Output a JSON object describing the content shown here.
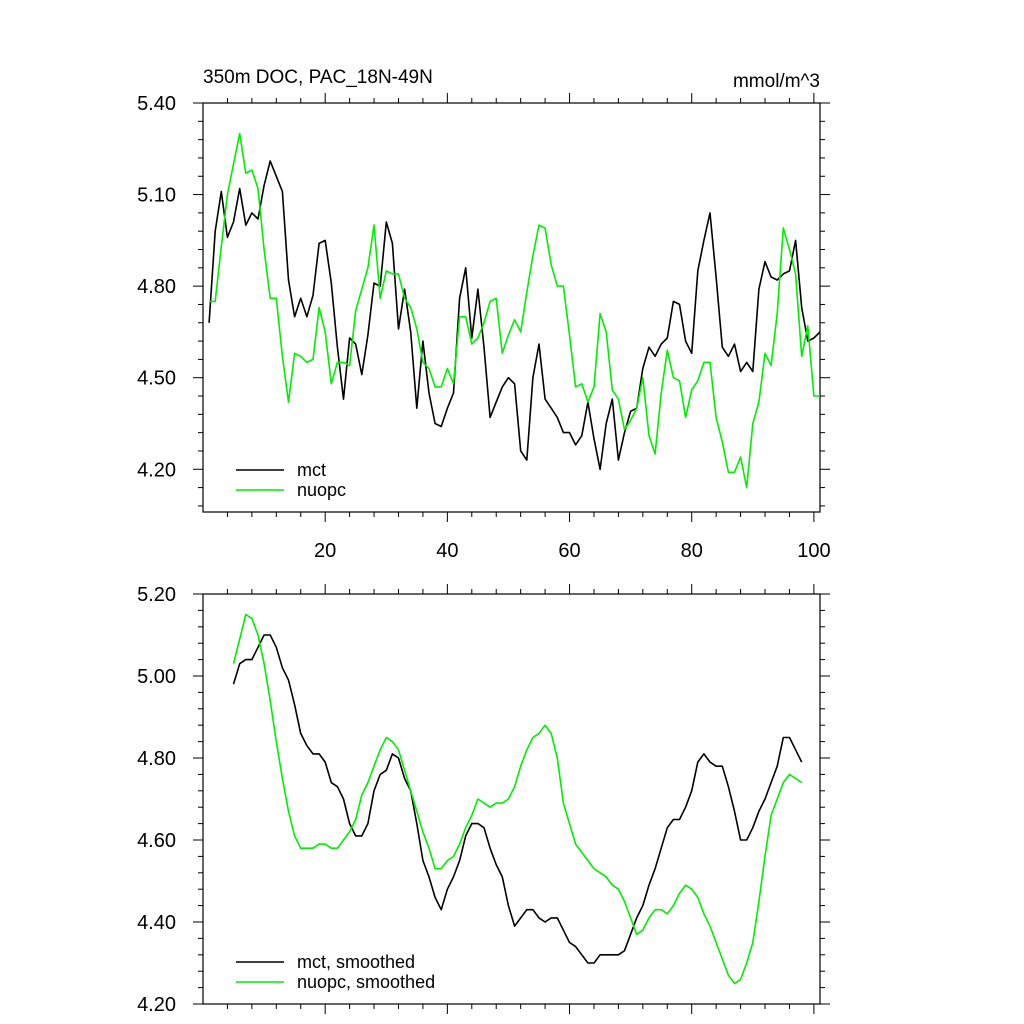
{
  "chart_data": [
    {
      "type": "line",
      "title": "350m DOC, PAC_18N-49N",
      "units": "mmol/m^3",
      "xlim": [
        0,
        101
      ],
      "ylim": [
        4.06,
        5.4
      ],
      "xticks": [
        20,
        40,
        60,
        80,
        100
      ],
      "xtick_labels": [
        "20",
        "40",
        "60",
        "80",
        "100"
      ],
      "yticks": [
        4.2,
        4.5,
        4.8,
        5.1,
        5.4
      ],
      "ytick_labels": [
        "4.20",
        "4.50",
        "4.80",
        "5.10",
        "5.40"
      ],
      "x": [
        1,
        2,
        3,
        4,
        5,
        6,
        7,
        8,
        9,
        10,
        11,
        12,
        13,
        14,
        15,
        16,
        17,
        18,
        19,
        20,
        21,
        22,
        23,
        24,
        25,
        26,
        27,
        28,
        29,
        30,
        31,
        32,
        33,
        34,
        35,
        36,
        37,
        38,
        39,
        40,
        41,
        42,
        43,
        44,
        45,
        46,
        47,
        48,
        49,
        50,
        51,
        52,
        53,
        54,
        55,
        56,
        57,
        58,
        59,
        60,
        61,
        62,
        63,
        64,
        65,
        66,
        67,
        68,
        69,
        70,
        71,
        72,
        73,
        74,
        75,
        76,
        77,
        78,
        79,
        80,
        81,
        82,
        83,
        84,
        85,
        86,
        87,
        88,
        89,
        90,
        91,
        92,
        93,
        94,
        95,
        96,
        97,
        98,
        99,
        100,
        101
      ],
      "series": [
        {
          "name": "mct",
          "color": "#000000",
          "values": [
            4.68,
            4.98,
            5.11,
            4.96,
            5.01,
            5.12,
            5.0,
            5.04,
            5.02,
            5.13,
            5.21,
            5.16,
            5.11,
            4.82,
            4.7,
            4.76,
            4.7,
            4.77,
            4.94,
            4.95,
            4.81,
            4.6,
            4.43,
            4.63,
            4.61,
            4.51,
            4.64,
            4.81,
            4.8,
            5.01,
            4.94,
            4.66,
            4.79,
            4.65,
            4.4,
            4.62,
            4.45,
            4.35,
            4.34,
            4.4,
            4.45,
            4.76,
            4.86,
            4.63,
            4.79,
            4.6,
            4.37,
            4.42,
            4.47,
            4.5,
            4.48,
            4.26,
            4.23,
            4.5,
            4.61,
            4.43,
            4.4,
            4.37,
            4.32,
            4.32,
            4.28,
            4.31,
            4.42,
            4.3,
            4.2,
            4.35,
            4.43,
            4.23,
            4.32,
            4.39,
            4.4,
            4.53,
            4.6,
            4.57,
            4.61,
            4.63,
            4.75,
            4.74,
            4.62,
            4.58,
            4.85,
            4.95,
            5.04,
            4.83,
            4.6,
            4.57,
            4.61,
            4.52,
            4.55,
            4.52,
            4.79,
            4.88,
            4.83,
            4.82,
            4.84,
            4.85,
            4.95,
            4.73,
            4.62,
            4.63,
            4.65
          ]
        },
        {
          "name": "nuopc",
          "color": "#00ee00",
          "values": [
            4.75,
            4.75,
            4.93,
            5.1,
            5.2,
            5.3,
            5.17,
            5.18,
            5.12,
            4.92,
            4.76,
            4.76,
            4.57,
            4.42,
            4.58,
            4.57,
            4.55,
            4.56,
            4.73,
            4.65,
            4.48,
            4.55,
            4.55,
            4.54,
            4.72,
            4.79,
            4.86,
            5.0,
            4.76,
            4.85,
            4.84,
            4.84,
            4.76,
            4.73,
            4.66,
            4.55,
            4.53,
            4.47,
            4.47,
            4.53,
            4.48,
            4.7,
            4.7,
            4.61,
            4.63,
            4.68,
            4.75,
            4.76,
            4.58,
            4.64,
            4.69,
            4.65,
            4.78,
            4.9,
            5.0,
            4.99,
            4.87,
            4.8,
            4.8,
            4.64,
            4.47,
            4.48,
            4.42,
            4.47,
            4.71,
            4.65,
            4.46,
            4.43,
            4.33,
            4.36,
            4.4,
            4.5,
            4.31,
            4.25,
            4.45,
            4.59,
            4.5,
            4.49,
            4.37,
            4.46,
            4.49,
            4.55,
            4.55,
            4.37,
            4.29,
            4.19,
            4.19,
            4.24,
            4.14,
            4.35,
            4.42,
            4.58,
            4.54,
            4.71,
            4.99,
            4.92,
            4.84,
            4.57,
            4.67,
            4.44,
            4.44
          ]
        }
      ],
      "legend": [
        "mct",
        "nuopc"
      ],
      "legend_position": "bottom-left"
    },
    {
      "type": "line",
      "title": "",
      "xlim": [
        0,
        101
      ],
      "ylim": [
        4.2,
        5.2
      ],
      "xticks": [
        20,
        40,
        60,
        80,
        100
      ],
      "xtick_labels": [],
      "yticks": [
        4.2,
        4.4,
        4.6,
        4.8,
        5.0,
        5.2
      ],
      "ytick_labels": [
        "4.20",
        "4.40",
        "4.60",
        "4.80",
        "5.00",
        "5.20"
      ],
      "x": [
        5,
        6,
        7,
        8,
        9,
        10,
        11,
        12,
        13,
        14,
        15,
        16,
        17,
        18,
        19,
        20,
        21,
        22,
        23,
        24,
        25,
        26,
        27,
        28,
        29,
        30,
        31,
        32,
        33,
        34,
        35,
        36,
        37,
        38,
        39,
        40,
        41,
        42,
        43,
        44,
        45,
        46,
        47,
        48,
        49,
        50,
        51,
        52,
        53,
        54,
        55,
        56,
        57,
        58,
        59,
        60,
        61,
        62,
        63,
        64,
        65,
        66,
        67,
        68,
        69,
        70,
        71,
        72,
        73,
        74,
        75,
        76,
        77,
        78,
        79,
        80,
        81,
        82,
        83,
        84,
        85,
        86,
        87,
        88,
        89,
        90,
        91,
        92,
        93,
        94,
        95,
        96,
        97,
        98
      ],
      "series": [
        {
          "name": "mct, smoothed",
          "color": "#000000",
          "values": [
            4.98,
            5.03,
            5.04,
            5.04,
            5.07,
            5.1,
            5.1,
            5.07,
            5.02,
            4.99,
            4.93,
            4.86,
            4.83,
            4.81,
            4.81,
            4.79,
            4.74,
            4.73,
            4.7,
            4.64,
            4.61,
            4.61,
            4.64,
            4.72,
            4.76,
            4.77,
            4.81,
            4.8,
            4.75,
            4.72,
            4.64,
            4.55,
            4.51,
            4.46,
            4.43,
            4.48,
            4.51,
            4.55,
            4.61,
            4.64,
            4.64,
            4.63,
            4.58,
            4.54,
            4.51,
            4.44,
            4.39,
            4.41,
            4.43,
            4.43,
            4.41,
            4.4,
            4.41,
            4.41,
            4.38,
            4.35,
            4.34,
            4.32,
            4.3,
            4.3,
            4.32,
            4.32,
            4.32,
            4.32,
            4.33,
            4.37,
            4.41,
            4.44,
            4.49,
            4.53,
            4.58,
            4.63,
            4.65,
            4.65,
            4.68,
            4.72,
            4.79,
            4.81,
            4.79,
            4.78,
            4.78,
            4.73,
            4.67,
            4.6,
            4.6,
            4.63,
            4.67,
            4.7,
            4.74,
            4.78,
            4.85,
            4.85,
            4.82,
            4.79
          ]
        },
        {
          "name": "nuopc, smoothed",
          "color": "#00ee00",
          "values": [
            5.03,
            5.09,
            5.15,
            5.14,
            5.1,
            5.03,
            4.94,
            4.84,
            4.75,
            4.67,
            4.61,
            4.58,
            4.58,
            4.58,
            4.59,
            4.59,
            4.58,
            4.58,
            4.6,
            4.62,
            4.65,
            4.71,
            4.74,
            4.78,
            4.82,
            4.85,
            4.84,
            4.82,
            4.77,
            4.72,
            4.67,
            4.62,
            4.58,
            4.53,
            4.53,
            4.55,
            4.56,
            4.59,
            4.63,
            4.66,
            4.7,
            4.69,
            4.68,
            4.69,
            4.69,
            4.7,
            4.73,
            4.78,
            4.82,
            4.85,
            4.86,
            4.88,
            4.86,
            4.8,
            4.69,
            4.64,
            4.59,
            4.57,
            4.55,
            4.53,
            4.52,
            4.51,
            4.49,
            4.48,
            4.45,
            4.41,
            4.37,
            4.38,
            4.41,
            4.43,
            4.43,
            4.42,
            4.44,
            4.47,
            4.49,
            4.48,
            4.46,
            4.42,
            4.39,
            4.35,
            4.31,
            4.27,
            4.25,
            4.26,
            4.3,
            4.35,
            4.45,
            4.56,
            4.66,
            4.7,
            4.74,
            4.76,
            4.75,
            4.74
          ]
        }
      ],
      "legend": [
        "mct, smoothed",
        "nuopc, smoothed"
      ],
      "legend_position": "bottom-left"
    }
  ]
}
